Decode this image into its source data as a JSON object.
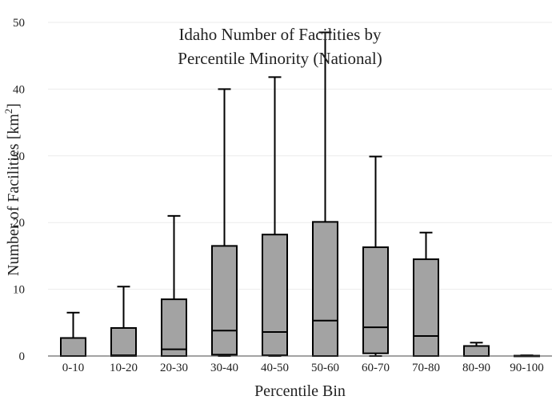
{
  "chart_data": {
    "type": "box",
    "title_lines": [
      "Idaho Number of Facilities by",
      "Percentile Minority (National)"
    ],
    "xlabel": "Percentile Bin",
    "ylabel_main": "Number of Facilities  [km",
    "ylabel_sup": "2",
    "ylabel_close": "]",
    "ylim": [
      0,
      50
    ],
    "yticks": [
      0,
      10,
      20,
      30,
      40,
      50
    ],
    "ytick_labels": [
      "0",
      "10",
      "20",
      "30",
      "40",
      "50"
    ],
    "grid": true,
    "categories": [
      "0-10",
      "10-20",
      "20-30",
      "30-40",
      "40-50",
      "50-60",
      "60-70",
      "70-80",
      "80-90",
      "90-100"
    ],
    "boxes": [
      {
        "min": 0,
        "q1": 0,
        "median": 0,
        "q3": 2.7,
        "max": 6.5
      },
      {
        "min": 0,
        "q1": 0,
        "median": 0.1,
        "q3": 4.2,
        "max": 10.4
      },
      {
        "min": 0,
        "q1": 0,
        "median": 1.0,
        "q3": 8.5,
        "max": 21.0
      },
      {
        "min": 0,
        "q1": 0.2,
        "median": 3.8,
        "q3": 16.5,
        "max": 40.0
      },
      {
        "min": 0,
        "q1": 0.1,
        "median": 3.6,
        "q3": 18.2,
        "max": 41.8
      },
      {
        "min": 0,
        "q1": 0,
        "median": 5.3,
        "q3": 20.1,
        "max": 48.5
      },
      {
        "min": 0,
        "q1": 0.4,
        "median": 4.3,
        "q3": 16.3,
        "max": 29.9
      },
      {
        "min": 0,
        "q1": 0,
        "median": 3.0,
        "q3": 14.5,
        "max": 18.5
      },
      {
        "min": 0,
        "q1": 0,
        "median": 0,
        "q3": 1.5,
        "max": 2.0
      },
      {
        "min": 0,
        "q1": 0,
        "median": 0,
        "q3": 0.05,
        "max": 0.1
      }
    ],
    "colors": {
      "box_fill": "#a3a3a3",
      "box_stroke": "#000000",
      "grid": "#ebebeb",
      "axis": "#444444"
    }
  }
}
